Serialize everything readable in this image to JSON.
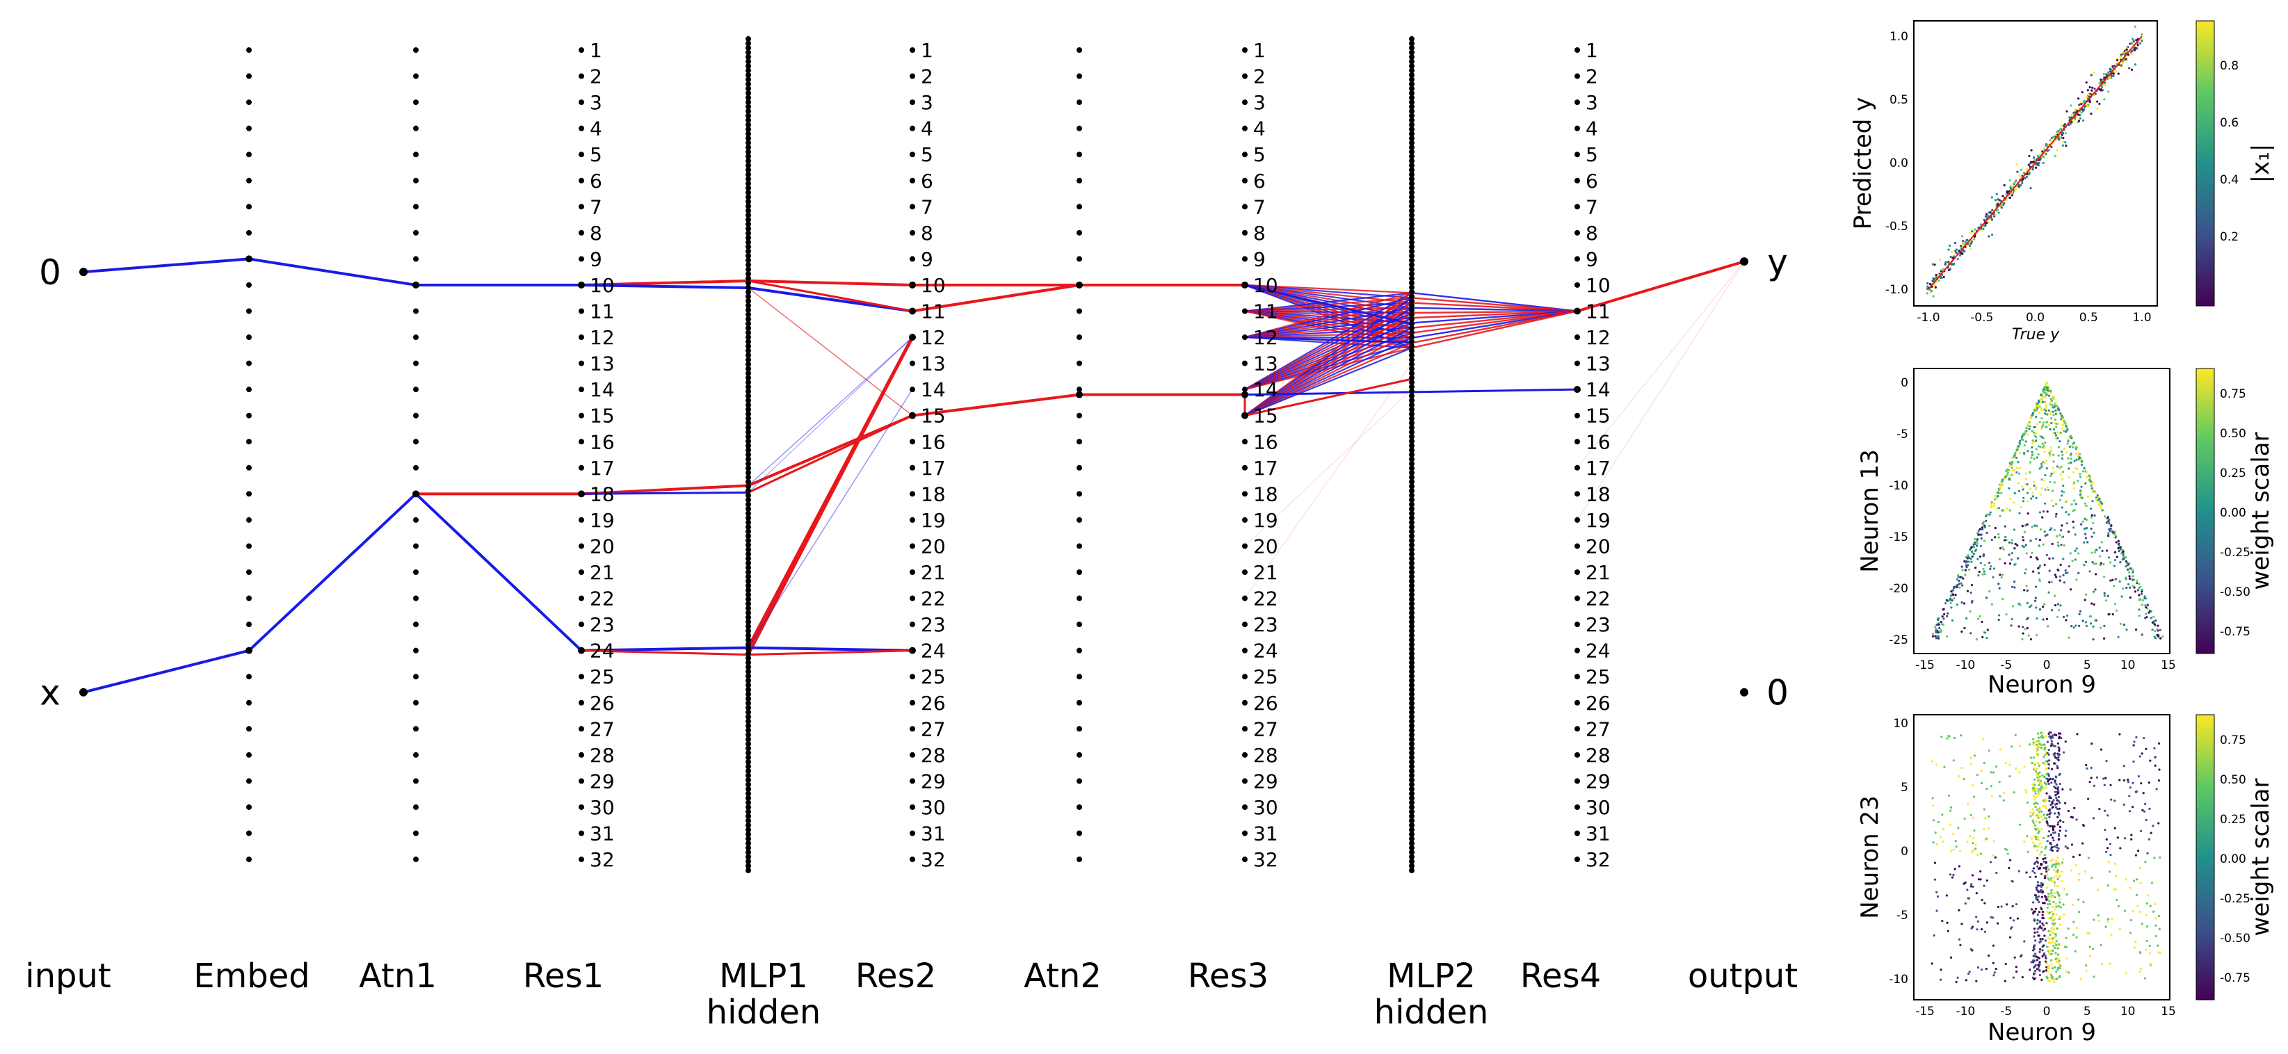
{
  "input_nodes": [
    "0",
    "x"
  ],
  "output_nodes": [
    "y",
    "0"
  ],
  "layer_labels": [
    {
      "key": "input",
      "lines": [
        "input"
      ]
    },
    {
      "key": "embed",
      "lines": [
        "Embed"
      ]
    },
    {
      "key": "atn1",
      "lines": [
        "Atn1"
      ]
    },
    {
      "key": "res1",
      "lines": [
        "Res1"
      ]
    },
    {
      "key": "mlp1",
      "lines": [
        "MLP1",
        "hidden"
      ]
    },
    {
      "key": "res2",
      "lines": [
        "Res2"
      ]
    },
    {
      "key": "atn2",
      "lines": [
        "Atn2"
      ]
    },
    {
      "key": "res3",
      "lines": [
        "Res3"
      ]
    },
    {
      "key": "mlp2",
      "lines": [
        "MLP2",
        "hidden"
      ]
    },
    {
      "key": "res4",
      "lines": [
        "Res4"
      ]
    },
    {
      "key": "output",
      "lines": [
        "output"
      ]
    }
  ],
  "residual_neuron_count": 32,
  "colors": {
    "positive": "#e8171b",
    "negative": "#1a1ae6",
    "node": "#000000"
  },
  "edges": [
    [
      "in0",
      "emb9",
      "neg",
      4
    ],
    [
      "emb9",
      "atn10",
      "neg",
      4
    ],
    [
      "atn10",
      "res1_10",
      "neg",
      4
    ],
    [
      "inx",
      "emb24",
      "neg",
      4
    ],
    [
      "emb24",
      "atn18",
      "neg",
      4
    ],
    [
      "atn18",
      "res1_18",
      "pos",
      4
    ],
    [
      "atn18",
      "res1_24",
      "neg",
      4
    ],
    [
      "res1_10",
      "mlp1_a",
      "pos",
      4
    ],
    [
      "res1_10",
      "mlp1_b",
      "neg",
      4
    ],
    [
      "res1_18",
      "mlp1_c",
      "pos",
      4
    ],
    [
      "res1_18",
      "mlp1_d",
      "neg",
      3
    ],
    [
      "res1_24",
      "mlp1_e",
      "neg",
      4
    ],
    [
      "res1_24",
      "mlp1_f",
      "pos",
      3
    ],
    [
      "mlp1_a",
      "res2_10",
      "pos",
      4
    ],
    [
      "mlp1_b",
      "res2_11",
      "neg",
      4
    ],
    [
      "mlp1_a",
      "res2_11",
      "pos",
      3
    ],
    [
      "mlp1_b",
      "res2_15",
      "pos",
      1.5
    ],
    [
      "mlp1_b",
      "res2_15",
      "pos",
      1
    ],
    [
      "mlp1_c",
      "res2_15",
      "pos",
      4
    ],
    [
      "mlp1_d",
      "res2_15",
      "pos",
      3
    ],
    [
      "mlp1_c",
      "res2_12",
      "neg",
      1.5
    ],
    [
      "mlp1_d",
      "res2_12",
      "neg",
      1
    ],
    [
      "mlp1_e",
      "res2_12",
      "pos",
      5
    ],
    [
      "mlp1_f",
      "res2_12",
      "pos",
      4
    ],
    [
      "mlp1_e",
      "res2_14",
      "neg",
      1.5
    ],
    [
      "mlp1_e",
      "res2_24",
      "neg",
      4
    ],
    [
      "mlp1_f",
      "res2_24",
      "pos",
      3
    ],
    [
      "res2_10",
      "atn2_10",
      "pos",
      4
    ],
    [
      "res2_11",
      "atn2_10",
      "pos",
      4
    ],
    [
      "res2_15",
      "atn2_15",
      "pos",
      4
    ],
    [
      "atn2_10",
      "res3_10",
      "pos",
      4
    ],
    [
      "atn2_15",
      "res3_14",
      "pos",
      4
    ],
    [
      "res3_14",
      "res3_15",
      "pos",
      3
    ],
    [
      "res4_11",
      "out_y",
      "pos",
      4
    ]
  ],
  "plot_top": {
    "xlabel": "True y",
    "ylabel": "Predicted y",
    "cbar_label": "|x₁|",
    "xticks": [
      "-1.0",
      "-0.5",
      "0.0",
      "0.5",
      "1.0"
    ],
    "yticks": [
      "1.0",
      "0.5",
      "0.0",
      "-0.5",
      "-1.0"
    ],
    "cbar_ticks": [
      "0.8",
      "0.6",
      "0.4",
      "0.2"
    ]
  },
  "plot_mid": {
    "xlabel": "Neuron 9",
    "ylabel": "Neuron 13",
    "cbar_label": "weight scalar",
    "xticks": [
      "-15",
      "-10",
      "-5",
      "0",
      "5",
      "10",
      "15"
    ],
    "yticks": [
      "0",
      "-5",
      "-10",
      "-15",
      "-20",
      "-25"
    ],
    "cbar_ticks": [
      "0.75",
      "0.50",
      "0.25",
      "0.00",
      "-0.25",
      "-0.50",
      "-0.75"
    ]
  },
  "plot_bot": {
    "xlabel": "Neuron 9",
    "ylabel": "Neuron 23",
    "cbar_label": "weight scalar",
    "xticks": [
      "-15",
      "-10",
      "-5",
      "0",
      "5",
      "10",
      "15"
    ],
    "yticks": [
      "10",
      "5",
      "0",
      "-5",
      "-10"
    ],
    "cbar_ticks": [
      "0.75",
      "0.50",
      "0.25",
      "0.00",
      "-0.25",
      "-0.50",
      "-0.75"
    ]
  }
}
